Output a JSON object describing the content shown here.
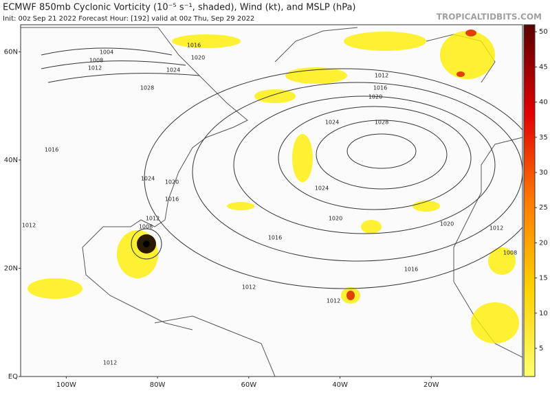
{
  "header": {
    "title": "ECMWF 850mb Cyclonic Vorticity (10⁻⁵ s⁻¹, shaded), Wind (kt), and MSLP (hPa)",
    "subtitle": "Init: 00z Sep 21 2022   Forecast Hour: [192]   valid at 00z Thu, Sep 29 2022",
    "brand": "TROPICALTIDBITS.COM"
  },
  "map": {
    "latlim": [
      0,
      65
    ],
    "lonlim": [
      -110,
      0
    ],
    "lat_ticks": [
      {
        "value": 60,
        "label": "60N"
      },
      {
        "value": 40,
        "label": "40N"
      },
      {
        "value": 20,
        "label": "20N"
      },
      {
        "value": 0,
        "label": "EQ"
      }
    ],
    "lon_ticks": [
      {
        "value": -100,
        "label": "100W"
      },
      {
        "value": -80,
        "label": "80W"
      },
      {
        "value": -60,
        "label": "60W"
      },
      {
        "value": -40,
        "label": "40W"
      },
      {
        "value": -20,
        "label": "20W"
      }
    ],
    "isobar_labels": [
      1004,
      1008,
      1012,
      1016,
      1020,
      1024,
      1028,
      1024,
      1020,
      1016,
      1012,
      1008,
      1012,
      1016,
      1020,
      1024,
      1028,
      1024,
      1020,
      1016,
      1012,
      1016,
      1020,
      1012,
      1008,
      1012,
      1012,
      1016,
      1012
    ]
  },
  "colorbar": {
    "lim": [
      1,
      51
    ],
    "ticks": [
      5,
      10,
      15,
      20,
      25,
      30,
      35,
      40,
      45,
      50
    ]
  }
}
